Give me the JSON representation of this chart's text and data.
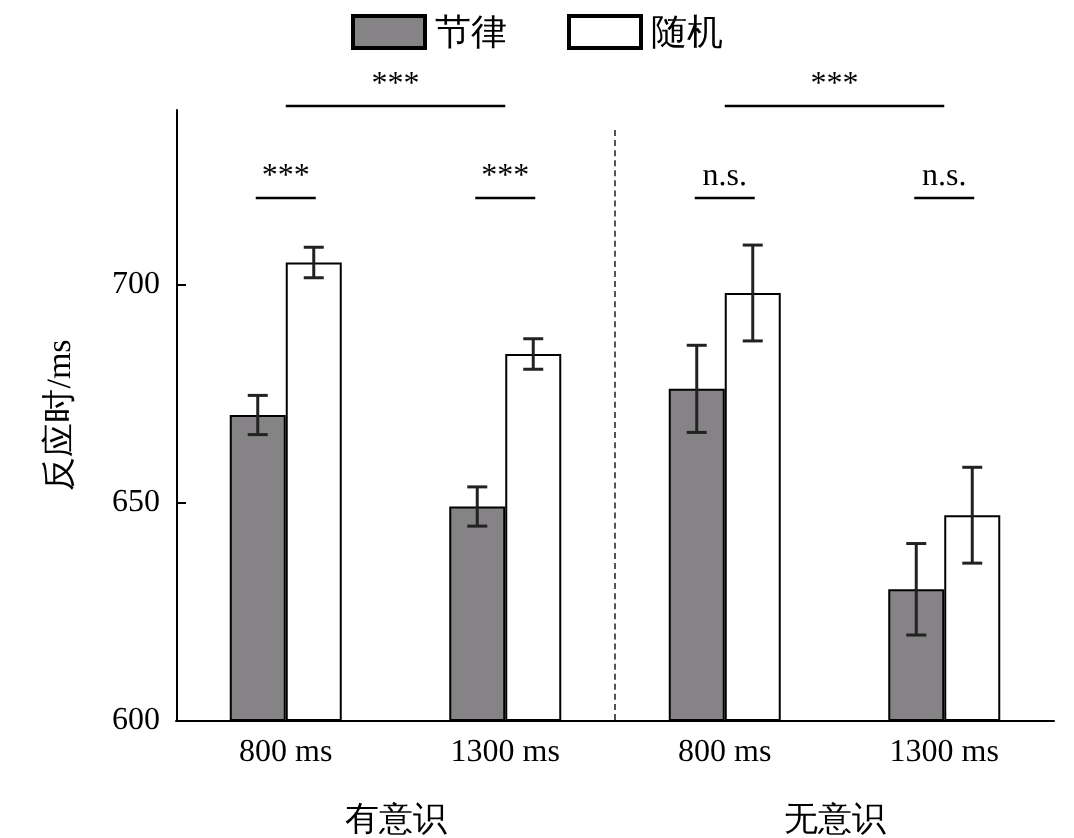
{
  "chart_data": {
    "type": "bar",
    "ylabel": "反应时/ms",
    "categories": [
      "800 ms",
      "1300 ms",
      "800 ms",
      "1300 ms"
    ],
    "series": [
      {
        "name": "节律",
        "color": "#858385",
        "values": [
          670,
          649,
          676,
          630
        ],
        "errors": [
          4.5,
          4.5,
          10,
          10.5
        ]
      },
      {
        "name": "随机",
        "color": "#ffffff",
        "values": [
          705,
          684,
          698,
          647
        ],
        "errors": [
          3.5,
          3.5,
          11,
          11
        ]
      }
    ],
    "ylim": [
      600,
      740
    ],
    "yticks": [
      600,
      650,
      700
    ],
    "grid": false,
    "legend": "top",
    "annotations": [
      "***",
      "***",
      "***",
      "n.s.",
      "n.s.",
      "***",
      "有意识",
      "无意识"
    ]
  }
}
